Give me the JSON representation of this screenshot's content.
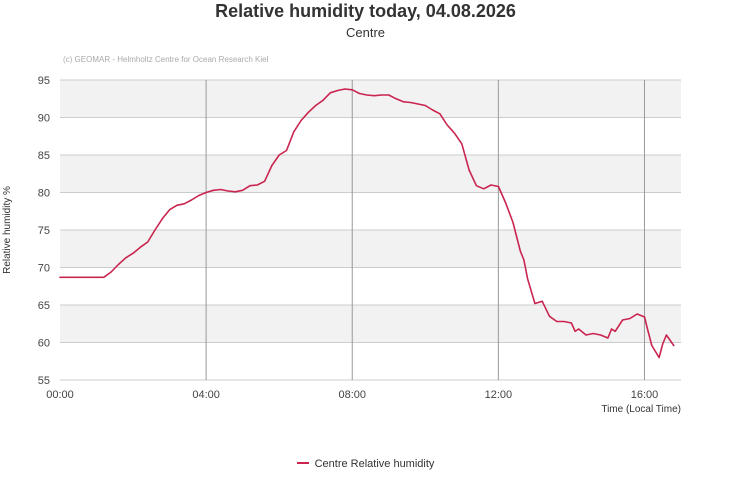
{
  "title": "Relative humidity today, 04.08.2026",
  "subtitle": "Centre",
  "credit": "(c) GEOMAR - Helmholtz Centre for Ocean Research Kiel",
  "colors": {
    "series": "#c9254f",
    "band": "#f2f2f2",
    "grid": "#cccccc",
    "vgrid": "#999999"
  },
  "chart_data": {
    "type": "line",
    "title": "Relative humidity today, 04.08.2026",
    "subtitle": "Centre",
    "xlabel": "Time (Local Time)",
    "ylabel": "Relative humidity %",
    "x_ticks": [
      "00:00",
      "04:00",
      "08:00",
      "12:00",
      "16:00"
    ],
    "y_ticks": [
      55,
      60,
      65,
      70,
      75,
      80,
      85,
      90,
      95
    ],
    "ylim": [
      55,
      95
    ],
    "xlim_hours": [
      0,
      17
    ],
    "grid": true,
    "legend_position": "bottom-center",
    "series": [
      {
        "name": "Centre Relative humidity",
        "color": "#c9254f",
        "x_hours": [
          0,
          1.2,
          1.4,
          1.6,
          1.8,
          2.0,
          2.2,
          2.4,
          2.6,
          2.8,
          3.0,
          3.2,
          3.4,
          3.6,
          3.8,
          4.0,
          4.2,
          4.4,
          4.6,
          4.8,
          5.0,
          5.2,
          5.4,
          5.6,
          5.8,
          6.0,
          6.2,
          6.4,
          6.6,
          6.8,
          7.0,
          7.2,
          7.4,
          7.6,
          7.8,
          8.0,
          8.2,
          8.4,
          8.6,
          8.8,
          9.0,
          9.2,
          9.4,
          9.6,
          9.8,
          10.0,
          10.2,
          10.4,
          10.6,
          10.8,
          11.0,
          11.2,
          11.4,
          11.6,
          11.8,
          12.0,
          12.2,
          12.4,
          12.6,
          12.7,
          12.8,
          13.0,
          13.2,
          13.4,
          13.6,
          13.8,
          14.0,
          14.1,
          14.2,
          14.4,
          14.6,
          14.8,
          15.0,
          15.1,
          15.2,
          15.4,
          15.6,
          15.8,
          16.0,
          16.1,
          16.2,
          16.4,
          16.5,
          16.6,
          16.8
        ],
        "values": [
          68.7,
          68.7,
          69.4,
          70.4,
          71.3,
          71.9,
          72.7,
          73.4,
          75.0,
          76.5,
          77.7,
          78.3,
          78.5,
          79.0,
          79.6,
          80.0,
          80.3,
          80.4,
          80.2,
          80.1,
          80.3,
          80.9,
          81.0,
          81.5,
          83.6,
          85.0,
          85.6,
          88.1,
          89.6,
          90.7,
          91.6,
          92.3,
          93.3,
          93.6,
          93.8,
          93.7,
          93.2,
          93.0,
          92.9,
          93.0,
          93.0,
          92.5,
          92.1,
          92.0,
          91.8,
          91.6,
          91.0,
          90.5,
          89.0,
          87.9,
          86.5,
          83.0,
          80.9,
          80.5,
          81.0,
          80.8,
          78.6,
          76.0,
          72.2,
          71.0,
          68.5,
          65.2,
          65.5,
          63.5,
          62.8,
          62.8,
          62.6,
          61.5,
          61.8,
          61.0,
          61.2,
          61.0,
          60.6,
          61.8,
          61.5,
          63.0,
          63.2,
          63.8,
          63.4,
          61.5,
          59.6,
          58.0,
          59.8,
          61.0,
          59.6
        ]
      }
    ]
  }
}
